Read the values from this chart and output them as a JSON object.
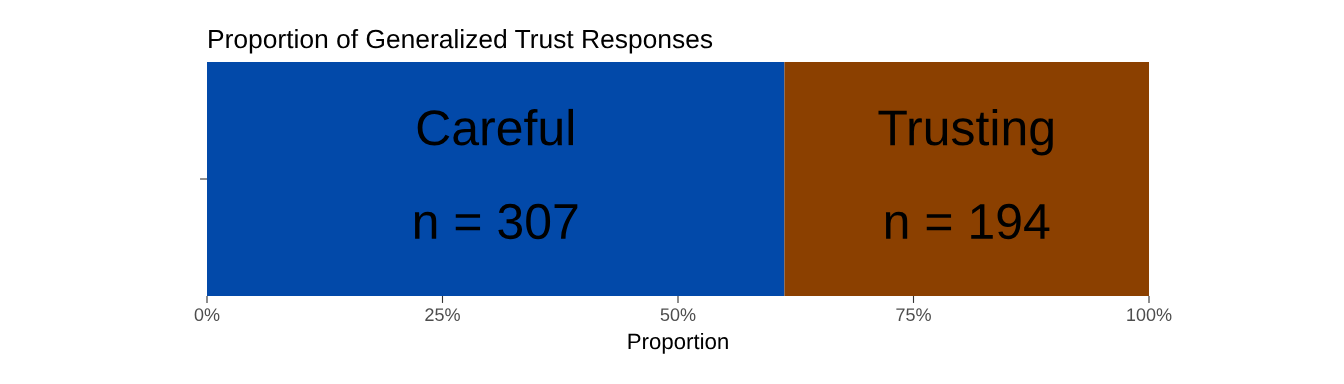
{
  "chart_data": {
    "type": "bar",
    "orientation": "horizontal",
    "stacked": true,
    "title": "Proportion of Generalized Trust Responses",
    "xlabel": "Proportion",
    "categories": [
      null
    ],
    "series": [
      {
        "name": "Careful",
        "color": "#0249a9",
        "values": [
          61.3
        ]
      },
      {
        "name": "Trusting",
        "color": "#8b4000",
        "values": [
          38.7
        ]
      }
    ],
    "annotations": [
      "n = 307",
      "n = 194"
    ],
    "xlim": [
      0,
      100
    ],
    "xticks": [
      {
        "value": 0,
        "label": "0%"
      },
      {
        "value": 25,
        "label": "25%"
      },
      {
        "value": 50,
        "label": "50%"
      },
      {
        "value": 75,
        "label": "75%"
      },
      {
        "value": 100,
        "label": "100%"
      }
    ],
    "grid": false,
    "legend": false
  }
}
